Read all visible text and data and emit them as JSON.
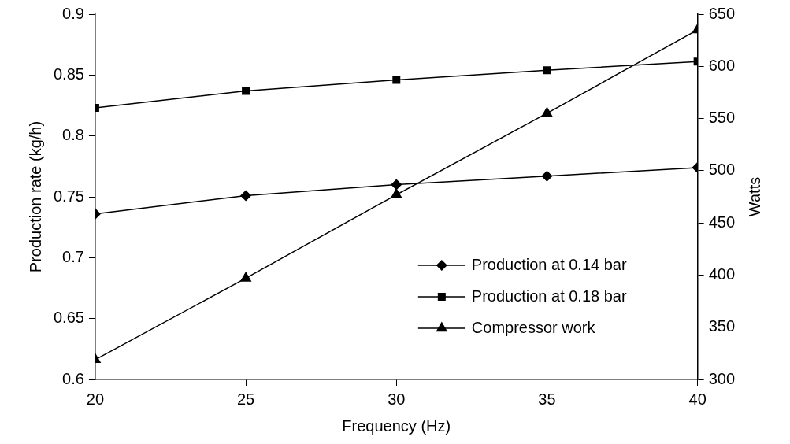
{
  "chart_data": {
    "type": "line",
    "xlabel": "Frequency (Hz)",
    "ylabel": "Production rate (kg/h)",
    "y2label": "Watts",
    "x": [
      20,
      25,
      30,
      35,
      40
    ],
    "xlim": [
      20,
      40
    ],
    "xticks": [
      20,
      25,
      30,
      35,
      40
    ],
    "ylim": [
      0.6,
      0.9
    ],
    "yticks": [
      0.6,
      0.65,
      0.7,
      0.75,
      0.8,
      0.85,
      0.9
    ],
    "y2lim": [
      300,
      650
    ],
    "y2ticks": [
      300,
      350,
      400,
      450,
      500,
      550,
      600,
      650
    ],
    "grid": false,
    "legend": "bottom right",
    "series": [
      {
        "name": "Production at 0.14 bar",
        "color": "#000000",
        "marker": "diamond",
        "values": [
          0.736,
          0.751,
          0.76,
          0.767,
          0.774
        ]
      },
      {
        "name": "Production at 0.18 bar",
        "color": "#000000",
        "marker": "square",
        "values": [
          0.823,
          0.837,
          0.846,
          0.854,
          0.861
        ]
      },
      {
        "name": "Compressor work",
        "color": "#000000",
        "marker": "triangle",
        "axis": "y2",
        "values": [
          319,
          397,
          477,
          555,
          635
        ]
      }
    ]
  }
}
